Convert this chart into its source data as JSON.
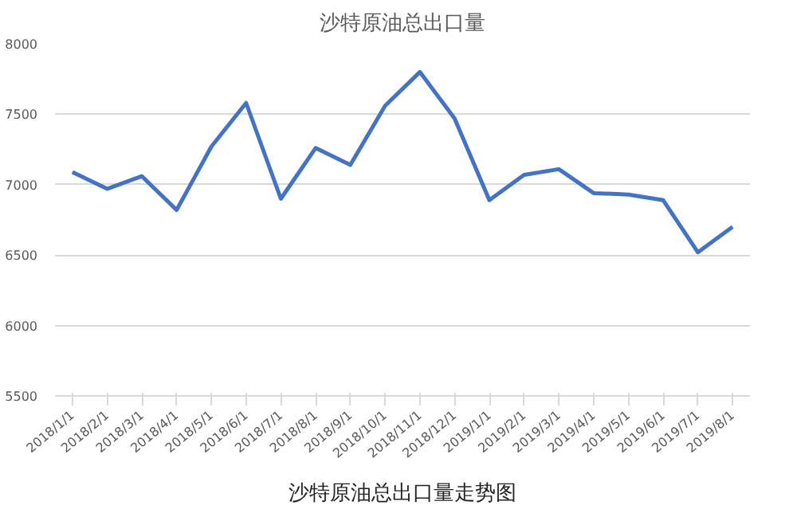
{
  "chart_data": {
    "type": "line",
    "title": "沙特原油总出口量",
    "categories": [
      "2018/1/1",
      "2018/2/1",
      "2018/3/1",
      "2018/4/1",
      "2018/5/1",
      "2018/6/1",
      "2018/7/1",
      "2018/8/1",
      "2018/9/1",
      "2018/10/1",
      "2018/11/1",
      "2018/12/1",
      "2019/1/1",
      "2019/2/1",
      "2019/3/1",
      "2019/4/1",
      "2019/5/1",
      "2019/6/1",
      "2019/7/1",
      "2019/8/1"
    ],
    "series": [
      {
        "color": "#4472c4",
        "values": [
          7090,
          6970,
          7060,
          6820,
          7270,
          7580,
          6900,
          7260,
          7140,
          7560,
          7800,
          7470,
          6890,
          7070,
          7110,
          6940,
          6930,
          6890,
          6520,
          6700
        ]
      }
    ],
    "ylim": [
      5500,
      8000
    ],
    "yticks": [
      5500,
      6000,
      6500,
      7000,
      7500,
      8000
    ],
    "grid": "y",
    "marker": "none",
    "line_style": "solid",
    "annotations": [
      "沙特原油总出口量走势图"
    ]
  }
}
